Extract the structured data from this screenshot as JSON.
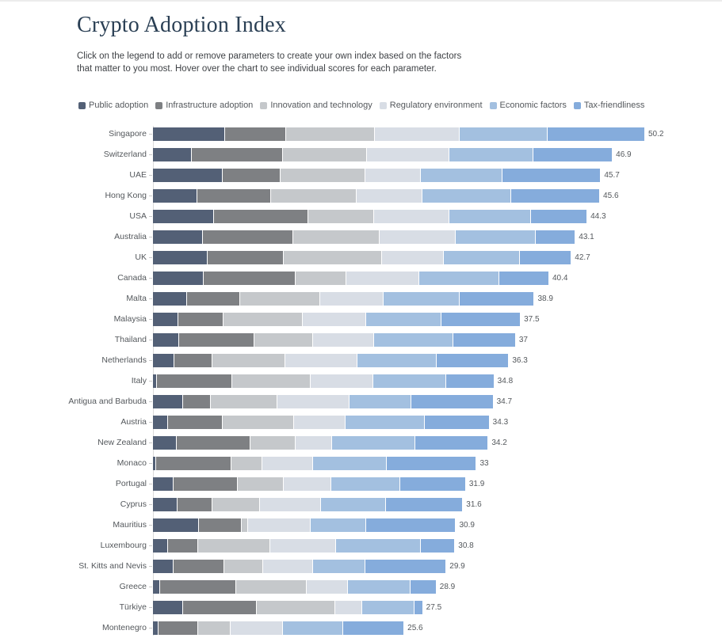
{
  "header": {
    "title": "Crypto Adoption Index",
    "description_line1": "Click on the legend to add or remove parameters to create your own index based on the factors",
    "description_line2": "that matter to you most. Hover over the chart to see individual scores for each parameter."
  },
  "colors": {
    "title_text": "#2a3f54",
    "body_text": "#3f4246",
    "label_text": "#54585c",
    "axis_line": "#dadada",
    "tick": "#c9c9c9",
    "background": "#ffffff"
  },
  "chart_data": {
    "type": "bar",
    "stacked": true,
    "orientation": "horizontal",
    "grid": false,
    "legend_position": "top",
    "title": "Crypto Adoption Index",
    "xlabel": "",
    "ylabel": "",
    "xlim": [
      0,
      52
    ],
    "categories": [
      "Singapore",
      "Switzerland",
      "UAE",
      "Hong Kong",
      "USA",
      "Australia",
      "UK",
      "Canada",
      "Malta",
      "Malaysia",
      "Thailand",
      "Netherlands",
      "Italy",
      "Antigua and Barbuda",
      "Austria",
      "New Zealand",
      "Monaco",
      "Portugal",
      "Cyprus",
      "Mauritius",
      "Luxembourg",
      "St. Kitts and Nevis",
      "Greece",
      "Türkiye",
      "Montenegro"
    ],
    "totals": [
      "50.2",
      "46.9",
      "45.7",
      "45.6",
      "44.3",
      "43.1",
      "42.7",
      "40.4",
      "38.9",
      "37.5",
      "37",
      "36.3",
      "34.8",
      "34.7",
      "34.3",
      "34.2",
      "33",
      "31.9",
      "31.6",
      "30.9",
      "30.8",
      "29.9",
      "28.9",
      "27.5",
      "25.6"
    ],
    "series": [
      {
        "name": "Public adoption",
        "color": "#536076",
        "values": [
          7.4,
          4.0,
          7.1,
          4.5,
          6.2,
          5.1,
          5.6,
          5.2,
          3.5,
          2.6,
          2.7,
          2.2,
          0.4,
          3.1,
          1.5,
          2.4,
          0.3,
          2.1,
          2.5,
          4.7,
          1.5,
          2.1,
          0.7,
          3.1,
          0.6
        ]
      },
      {
        "name": "Infrastructure adoption",
        "color": "#7e8083",
        "values": [
          6.2,
          9.3,
          5.9,
          7.6,
          9.7,
          9.2,
          7.8,
          9.4,
          5.4,
          4.6,
          7.7,
          3.9,
          7.7,
          2.8,
          5.6,
          7.6,
          7.7,
          6.6,
          3.6,
          4.4,
          3.1,
          5.2,
          7.8,
          7.5,
          4.0
        ]
      },
      {
        "name": "Innovation and technology",
        "color": "#c5c8cb",
        "values": [
          9.1,
          8.6,
          8.7,
          8.7,
          6.7,
          8.9,
          10.0,
          5.2,
          8.2,
          8.1,
          6.0,
          7.4,
          8.0,
          6.8,
          7.3,
          4.6,
          3.2,
          4.7,
          4.8,
          0.6,
          7.4,
          4.0,
          7.2,
          8.0,
          3.3
        ]
      },
      {
        "name": "Regulatory environment",
        "color": "#d8dde5",
        "values": [
          8.6,
          8.4,
          5.7,
          6.7,
          7.7,
          7.7,
          6.3,
          7.4,
          6.5,
          6.5,
          6.2,
          7.4,
          6.4,
          7.4,
          5.3,
          3.7,
          5.2,
          4.8,
          6.3,
          6.4,
          6.7,
          5.1,
          4.2,
          2.8,
          5.4
        ]
      },
      {
        "name": "Economic factors",
        "color": "#a3c0e0",
        "values": [
          9.0,
          8.6,
          8.3,
          9.1,
          8.3,
          8.2,
          7.8,
          8.2,
          7.7,
          7.7,
          8.1,
          8.1,
          7.5,
          6.3,
          8.1,
          8.5,
          7.5,
          7.1,
          6.6,
          5.7,
          8.7,
          5.3,
          6.4,
          5.3,
          6.1
        ]
      },
      {
        "name": "Tax-friendliness",
        "color": "#85acdc",
        "values": [
          9.9,
          8.0,
          10.0,
          9.0,
          5.7,
          4.0,
          5.2,
          5.0,
          7.6,
          8.0,
          6.3,
          7.3,
          4.8,
          8.3,
          6.5,
          7.4,
          9.1,
          6.6,
          7.8,
          9.1,
          3.4,
          8.2,
          2.6,
          0.8,
          6.2
        ]
      }
    ]
  }
}
